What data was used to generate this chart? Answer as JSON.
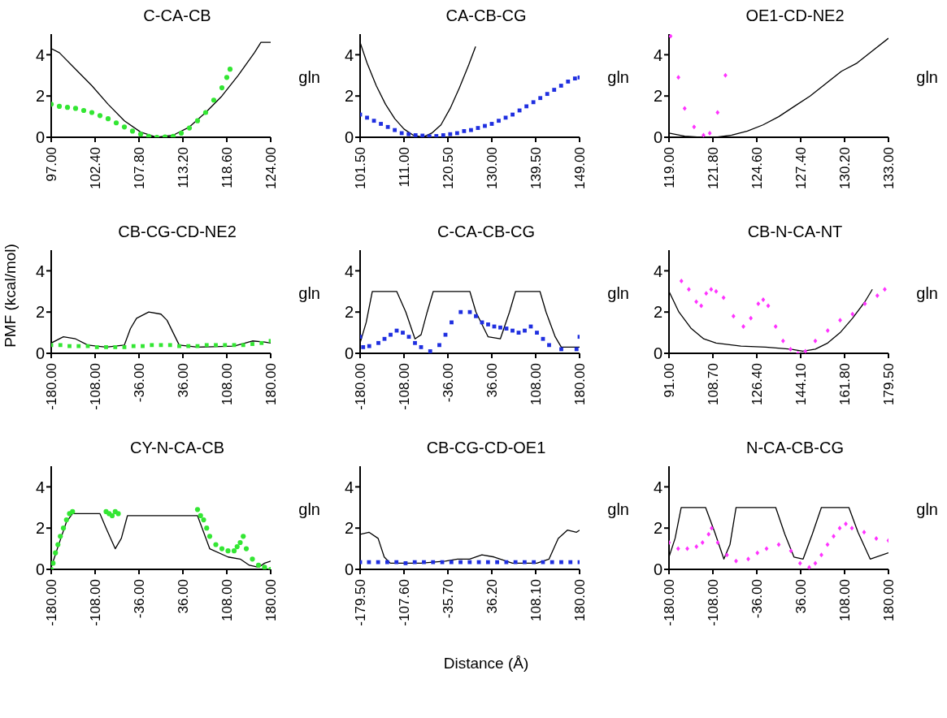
{
  "chart_data": [
    {
      "type": "line",
      "title": "C-CA-CB",
      "xlim": [
        97,
        124
      ],
      "xticks": [
        {
          "value": 97,
          "label": "97.00"
        },
        {
          "value": 102.4,
          "label": "102.40"
        },
        {
          "value": 107.8,
          "label": "107.80"
        },
        {
          "value": 113.2,
          "label": "113.20"
        },
        {
          "value": 118.6,
          "label": "118.60"
        },
        {
          "value": 124,
          "label": "124.00"
        }
      ],
      "ylim": [
        0,
        5
      ],
      "yticks": [
        0,
        2,
        4
      ],
      "annotations": [
        "gln"
      ],
      "series": [
        {
          "type": "line",
          "color": "#000000",
          "x": [
            97,
            98,
            100,
            102,
            104,
            106,
            108,
            110,
            112,
            114,
            116,
            118,
            120,
            122,
            122.8,
            124
          ],
          "values": [
            4.3,
            4.1,
            3.3,
            2.5,
            1.6,
            0.8,
            0.25,
            0,
            0.1,
            0.5,
            1.2,
            2.0,
            3.0,
            4.1,
            4.6,
            4.6
          ]
        },
        {
          "type": "scatter",
          "marker": "circle",
          "color": "#33e633",
          "x": [
            97,
            98,
            99,
            100,
            101,
            102,
            103,
            104,
            105,
            106,
            107,
            108,
            109,
            110,
            111,
            112,
            113,
            114,
            115,
            116,
            117,
            118,
            118.6,
            119
          ],
          "values": [
            1.6,
            1.5,
            1.45,
            1.4,
            1.3,
            1.2,
            1.05,
            0.9,
            0.7,
            0.5,
            0.3,
            0.15,
            0.05,
            0,
            0.02,
            0.05,
            0.2,
            0.45,
            0.8,
            1.2,
            1.8,
            2.4,
            2.9,
            3.3
          ]
        }
      ]
    },
    {
      "type": "line",
      "title": "CA-CB-CG",
      "xlim": [
        101.5,
        149
      ],
      "xticks": [
        {
          "value": 101.5,
          "label": "101.50"
        },
        {
          "value": 111,
          "label": "111.00"
        },
        {
          "value": 120.5,
          "label": "120.50"
        },
        {
          "value": 130,
          "label": "130.00"
        },
        {
          "value": 139.5,
          "label": "139.50"
        },
        {
          "value": 149,
          "label": "149.00"
        }
      ],
      "ylim": [
        0,
        5
      ],
      "yticks": [
        0,
        2,
        4
      ],
      "annotations": [
        "gln"
      ],
      "series": [
        {
          "type": "line",
          "color": "#000000",
          "x": [
            101.5,
            103,
            105,
            107,
            109,
            111,
            113,
            115,
            117,
            119,
            121,
            123,
            125,
            126.5
          ],
          "values": [
            4.6,
            3.6,
            2.5,
            1.6,
            0.9,
            0.4,
            0.1,
            0,
            0.2,
            0.6,
            1.4,
            2.4,
            3.5,
            4.4
          ]
        },
        {
          "type": "scatter",
          "marker": "square",
          "color": "#1f2fe0",
          "x": [
            101.5,
            103,
            104.5,
            106,
            107.5,
            109,
            110.5,
            112,
            113.5,
            115,
            116.5,
            118,
            119.5,
            121,
            122.5,
            124,
            125.5,
            127,
            128.5,
            130,
            131.5,
            133,
            134.5,
            136,
            137.5,
            139,
            140.5,
            142,
            143.5,
            145,
            146.5,
            148,
            149
          ],
          "values": [
            1.1,
            0.95,
            0.8,
            0.65,
            0.5,
            0.35,
            0.2,
            0.15,
            0.1,
            0.08,
            0.05,
            0.06,
            0.1,
            0.15,
            0.2,
            0.3,
            0.35,
            0.45,
            0.55,
            0.65,
            0.8,
            0.95,
            1.1,
            1.3,
            1.5,
            1.7,
            1.9,
            2.1,
            2.3,
            2.5,
            2.7,
            2.85,
            2.9
          ]
        }
      ]
    },
    {
      "type": "line",
      "title": "OE1-CD-NE2",
      "xlim": [
        119,
        133
      ],
      "xticks": [
        {
          "value": 119,
          "label": "119.00"
        },
        {
          "value": 121.8,
          "label": "121.80"
        },
        {
          "value": 124.6,
          "label": "124.60"
        },
        {
          "value": 127.4,
          "label": "127.40"
        },
        {
          "value": 130.2,
          "label": "130.20"
        },
        {
          "value": 133,
          "label": "133.00"
        }
      ],
      "ylim": [
        0,
        5
      ],
      "yticks": [
        0,
        2,
        4
      ],
      "annotations": [
        "gln"
      ],
      "series": [
        {
          "type": "line",
          "color": "#000000",
          "x": [
            119,
            120,
            121,
            122,
            123,
            124,
            125,
            126,
            127,
            128,
            129,
            130,
            131,
            132,
            133
          ],
          "values": [
            0.2,
            0.05,
            0,
            0,
            0.1,
            0.3,
            0.6,
            1.0,
            1.5,
            2.0,
            2.6,
            3.2,
            3.6,
            4.2,
            4.8
          ]
        },
        {
          "type": "scatter",
          "marker": "diamond",
          "color": "#ff33ff",
          "x": [
            119.1,
            119.6,
            120.0,
            120.6,
            121.2,
            121.6,
            122.1,
            122.6
          ],
          "values": [
            4.9,
            2.9,
            1.4,
            0.5,
            0.1,
            0.2,
            1.2,
            3.0
          ]
        }
      ]
    },
    {
      "type": "line",
      "title": "CB-CG-CD-NE2",
      "ylabel": "PMF (kcal/mol)",
      "xlim": [
        -180,
        180
      ],
      "xticks": [
        {
          "value": -180,
          "label": "-180.00"
        },
        {
          "value": -108,
          "label": "-108.00"
        },
        {
          "value": -36,
          "label": "-36.00"
        },
        {
          "value": 36,
          "label": "36.00"
        },
        {
          "value": 108,
          "label": "108.00"
        },
        {
          "value": 180,
          "label": "180.00"
        }
      ],
      "ylim": [
        0,
        5
      ],
      "yticks": [
        0,
        2,
        4
      ],
      "annotations": [
        "gln"
      ],
      "series": [
        {
          "type": "line",
          "color": "#000000",
          "x": [
            -180,
            -160,
            -140,
            -120,
            -90,
            -60,
            -50,
            -40,
            -20,
            0,
            10,
            20,
            30,
            60,
            120,
            150,
            170,
            180
          ],
          "values": [
            0.5,
            0.8,
            0.7,
            0.4,
            0.3,
            0.4,
            1.2,
            1.7,
            2.0,
            1.9,
            1.6,
            1.0,
            0.4,
            0.3,
            0.35,
            0.6,
            0.55,
            0.5
          ]
        },
        {
          "type": "scatter",
          "marker": "square",
          "color": "#33e633",
          "x": [
            -180,
            -165,
            -150,
            -135,
            -120,
            -105,
            -90,
            -75,
            -60,
            -45,
            -30,
            -15,
            0,
            15,
            30,
            45,
            60,
            75,
            90,
            105,
            120,
            135,
            150,
            165,
            180
          ],
          "values": [
            0.4,
            0.4,
            0.35,
            0.35,
            0.35,
            0.3,
            0.3,
            0.3,
            0.3,
            0.35,
            0.35,
            0.4,
            0.4,
            0.4,
            0.35,
            0.35,
            0.35,
            0.4,
            0.4,
            0.4,
            0.4,
            0.4,
            0.45,
            0.5,
            0.6
          ]
        }
      ]
    },
    {
      "type": "line",
      "title": "C-CA-CB-CG",
      "xlim": [
        -180,
        180
      ],
      "xticks": [
        {
          "value": -180,
          "label": "-180.00"
        },
        {
          "value": -108,
          "label": "-108.00"
        },
        {
          "value": -36,
          "label": "-36.00"
        },
        {
          "value": 36,
          "label": "36.00"
        },
        {
          "value": 108,
          "label": "108.00"
        },
        {
          "value": 180,
          "label": "180.00"
        }
      ],
      "ylim": [
        0,
        5
      ],
      "yticks": [
        0,
        2,
        4
      ],
      "annotations": [
        "gln"
      ],
      "series": [
        {
          "type": "line",
          "color": "#000000",
          "x": [
            -180,
            -170,
            -160,
            -120,
            -105,
            -90,
            -80,
            -70,
            -60,
            0,
            10,
            30,
            50,
            65,
            75,
            115,
            125,
            140,
            150,
            180
          ],
          "values": [
            0.5,
            1.5,
            3.0,
            3.0,
            2.0,
            0.7,
            0.9,
            2.0,
            3.0,
            3.0,
            2.0,
            0.8,
            0.7,
            2.0,
            3.0,
            3.0,
            2.0,
            0.8,
            0.3,
            0.3
          ]
        },
        {
          "type": "scatter",
          "marker": "square",
          "color": "#1f2fe0",
          "x": [
            -180,
            -175,
            -165,
            -150,
            -140,
            -130,
            -120,
            -110,
            -100,
            -90,
            -80,
            -65,
            -50,
            -40,
            -30,
            -15,
            0,
            10,
            20,
            30,
            40,
            50,
            60,
            70,
            80,
            90,
            100,
            110,
            120,
            130,
            150,
            175,
            180
          ],
          "values": [
            0.8,
            0.3,
            0.35,
            0.5,
            0.7,
            0.9,
            1.1,
            1.0,
            0.8,
            0.5,
            0.3,
            0.1,
            0.4,
            0.9,
            1.5,
            2.0,
            2.0,
            1.8,
            1.5,
            1.4,
            1.3,
            1.25,
            1.2,
            1.1,
            1.0,
            1.1,
            1.3,
            1.0,
            0.7,
            0.4,
            0.2,
            0.2,
            0.8
          ]
        }
      ]
    },
    {
      "type": "line",
      "title": "CB-N-CA-NT",
      "xlim": [
        91,
        179.5
      ],
      "xticks": [
        {
          "value": 91,
          "label": "91.00"
        },
        {
          "value": 108.7,
          "label": "108.70"
        },
        {
          "value": 126.4,
          "label": "126.40"
        },
        {
          "value": 144.1,
          "label": "144.10"
        },
        {
          "value": 161.8,
          "label": "161.80"
        },
        {
          "value": 179.5,
          "label": "179.50"
        }
      ],
      "ylim": [
        0,
        5
      ],
      "yticks": [
        0,
        2,
        4
      ],
      "annotations": [
        "gln"
      ],
      "series": [
        {
          "type": "line",
          "color": "#000000",
          "x": [
            91,
            95,
            100,
            105,
            110,
            120,
            130,
            140,
            145,
            150,
            155,
            160,
            165,
            170,
            173
          ],
          "values": [
            3.0,
            2.0,
            1.2,
            0.7,
            0.5,
            0.35,
            0.3,
            0.2,
            0.1,
            0.2,
            0.5,
            1.0,
            1.7,
            2.5,
            3.1
          ]
        },
        {
          "type": "scatter",
          "marker": "diamond",
          "color": "#ff33ff",
          "x": [
            96,
            99,
            102,
            104,
            106,
            108,
            110,
            113,
            117,
            121,
            124,
            127,
            129,
            131,
            134,
            137,
            140,
            143,
            146,
            150,
            155,
            160,
            165,
            170,
            175,
            178
          ],
          "values": [
            3.5,
            3.1,
            2.5,
            2.3,
            2.9,
            3.1,
            3.0,
            2.7,
            1.8,
            1.3,
            1.7,
            2.4,
            2.6,
            2.3,
            1.3,
            0.6,
            0.2,
            0.0,
            0.1,
            0.6,
            1.1,
            1.6,
            1.9,
            2.4,
            2.8,
            3.1
          ]
        }
      ]
    },
    {
      "type": "line",
      "title": "CY-N-CA-CB",
      "xlim": [
        -180,
        180
      ],
      "xticks": [
        {
          "value": -180,
          "label": "-180.00"
        },
        {
          "value": -108,
          "label": "-108.00"
        },
        {
          "value": -36,
          "label": "-36.00"
        },
        {
          "value": 36,
          "label": "36.00"
        },
        {
          "value": 108,
          "label": "108.00"
        },
        {
          "value": 180,
          "label": "180.00"
        }
      ],
      "ylim": [
        0,
        5
      ],
      "yticks": [
        0,
        2,
        4
      ],
      "annotations": [
        "gln"
      ],
      "series": [
        {
          "type": "line",
          "color": "#000000",
          "x": [
            -180,
            -170,
            -155,
            -145,
            -100,
            -90,
            -75,
            -65,
            -55,
            60,
            70,
            80,
            110,
            130,
            145,
            160,
            170,
            180
          ],
          "values": [
            0.1,
            1.0,
            2.3,
            2.7,
            2.7,
            2.0,
            1.0,
            1.5,
            2.6,
            2.6,
            1.8,
            1.0,
            0.6,
            0.5,
            0.2,
            0.1,
            0.3,
            0.4
          ]
        },
        {
          "type": "scatter",
          "marker": "circle",
          "color": "#33e633",
          "x": [
            -180,
            -177,
            -173,
            -169,
            -165,
            -160,
            -155,
            -150,
            -145,
            -90,
            -85,
            -80,
            -75,
            -70,
            60,
            65,
            70,
            75,
            80,
            90,
            100,
            110,
            120,
            125,
            130,
            135,
            140,
            150,
            160,
            170,
            180
          ],
          "values": [
            0.0,
            0.3,
            0.8,
            1.2,
            1.6,
            2.0,
            2.4,
            2.7,
            2.8,
            2.8,
            2.7,
            2.6,
            2.8,
            2.7,
            2.9,
            2.6,
            2.4,
            2.0,
            1.6,
            1.2,
            1.0,
            0.9,
            0.9,
            1.1,
            1.3,
            1.6,
            1.0,
            0.5,
            0.2,
            0.1,
            0.0
          ]
        }
      ]
    },
    {
      "type": "line",
      "title": "CB-CG-CD-OE1",
      "xlabel": "Distance (Å)",
      "xlim": [
        -179.5,
        180
      ],
      "xticks": [
        {
          "value": -179.5,
          "label": "-179.50"
        },
        {
          "value": -107.6,
          "label": "-107.60"
        },
        {
          "value": -35.7,
          "label": "-35.70"
        },
        {
          "value": 36.2,
          "label": "36.20"
        },
        {
          "value": 108.1,
          "label": "108.10"
        },
        {
          "value": 180,
          "label": "180.00"
        }
      ],
      "ylim": [
        0,
        5
      ],
      "yticks": [
        0,
        2,
        4
      ],
      "annotations": [
        "gln"
      ],
      "series": [
        {
          "type": "line",
          "color": "#000000",
          "x": [
            -179.5,
            -165,
            -150,
            -140,
            -130,
            -80,
            -40,
            -20,
            0,
            20,
            40,
            70,
            110,
            130,
            145,
            160,
            175,
            180
          ],
          "values": [
            1.7,
            1.8,
            1.5,
            0.6,
            0.3,
            0.3,
            0.4,
            0.5,
            0.5,
            0.7,
            0.6,
            0.3,
            0.3,
            0.5,
            1.5,
            1.9,
            1.8,
            1.9
          ]
        },
        {
          "type": "scatter",
          "marker": "square",
          "color": "#1f2fe0",
          "x": [
            -179.5,
            -165,
            -150,
            -135,
            -120,
            -105,
            -90,
            -75,
            -60,
            -45,
            -30,
            -15,
            0,
            15,
            30,
            45,
            60,
            75,
            90,
            105,
            120,
            135,
            150,
            165,
            180
          ],
          "values": [
            0.35,
            0.35,
            0.35,
            0.35,
            0.35,
            0.3,
            0.35,
            0.35,
            0.35,
            0.35,
            0.35,
            0.35,
            0.35,
            0.35,
            0.35,
            0.35,
            0.35,
            0.35,
            0.35,
            0.35,
            0.35,
            0.35,
            0.35,
            0.35,
            0.35
          ]
        }
      ]
    },
    {
      "type": "line",
      "title": "N-CA-CB-CG",
      "xlim": [
        -180,
        180
      ],
      "xticks": [
        {
          "value": -180,
          "label": "-180.00"
        },
        {
          "value": -108,
          "label": "-108.00"
        },
        {
          "value": -36,
          "label": "-36.00"
        },
        {
          "value": 36,
          "label": "36.00"
        },
        {
          "value": 108,
          "label": "108.00"
        },
        {
          "value": 180,
          "label": "180.00"
        }
      ],
      "ylim": [
        0,
        5
      ],
      "yticks": [
        0,
        2,
        4
      ],
      "annotations": [
        "gln"
      ],
      "series": [
        {
          "type": "line",
          "color": "#000000",
          "x": [
            -180,
            -170,
            -160,
            -120,
            -105,
            -90,
            -80,
            -70,
            -5,
            10,
            25,
            40,
            55,
            70,
            115,
            130,
            150,
            180
          ],
          "values": [
            0.6,
            1.5,
            3.0,
            3.0,
            1.8,
            0.5,
            1.2,
            3.0,
            3.0,
            1.7,
            0.6,
            0.5,
            1.7,
            3.0,
            3.0,
            1.8,
            0.5,
            0.8
          ]
        },
        {
          "type": "scatter",
          "marker": "diamond",
          "color": "#ff33ff",
          "x": [
            -180,
            -165,
            -150,
            -135,
            -125,
            -115,
            -110,
            -100,
            -85,
            -70,
            -50,
            -35,
            -20,
            0,
            20,
            35,
            50,
            60,
            70,
            80,
            90,
            100,
            110,
            120,
            140,
            160,
            180
          ],
          "values": [
            1.3,
            1.0,
            1.0,
            1.1,
            1.3,
            1.7,
            2.0,
            1.3,
            0.7,
            0.4,
            0.5,
            0.8,
            1.0,
            1.2,
            0.9,
            0.3,
            0.1,
            0.3,
            0.7,
            1.2,
            1.6,
            2.0,
            2.2,
            2.0,
            1.8,
            1.5,
            1.4
          ]
        }
      ]
    }
  ]
}
